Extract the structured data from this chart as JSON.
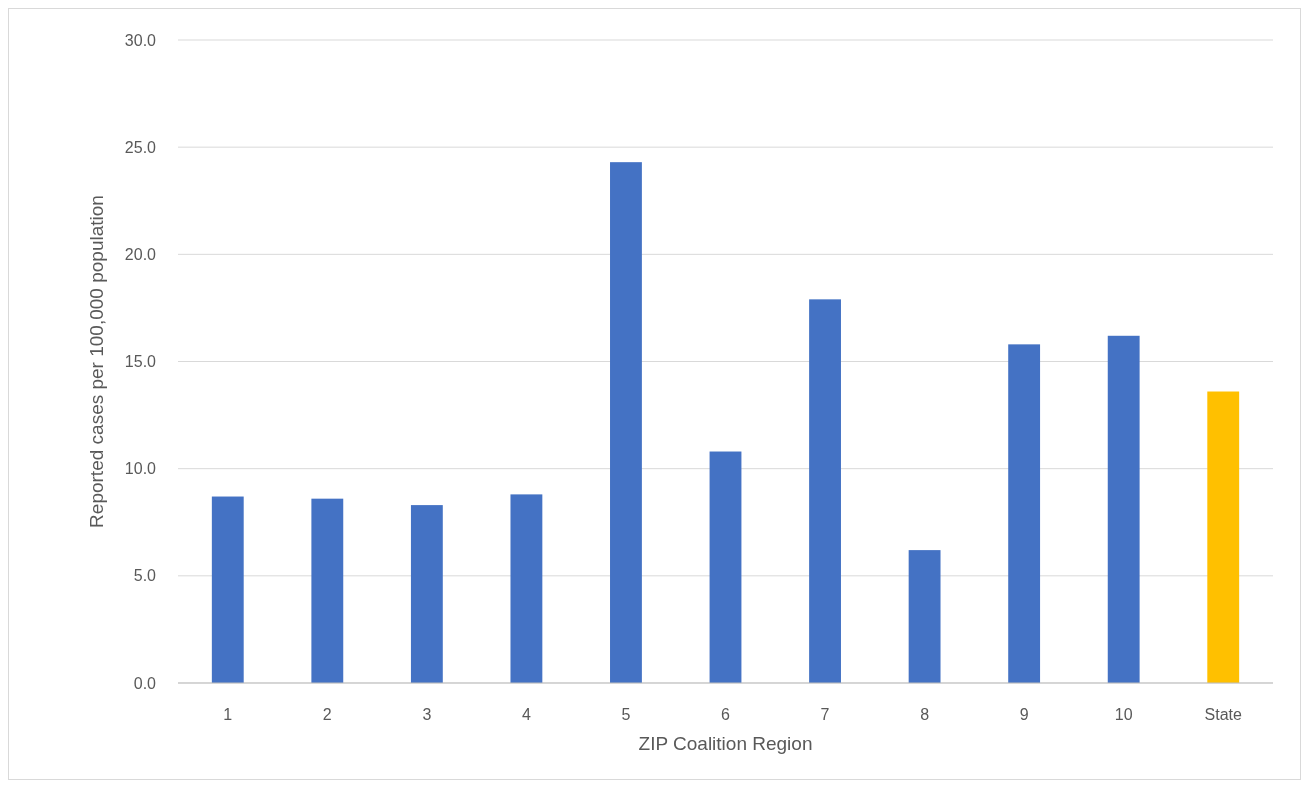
{
  "chart_data": {
    "type": "bar",
    "xlabel": "ZIP Coalition Region",
    "ylabel": "Reported cases per 100,000 population",
    "categories": [
      "1",
      "2",
      "3",
      "4",
      "5",
      "6",
      "7",
      "8",
      "9",
      "10",
      "State"
    ],
    "values": [
      8.7,
      8.6,
      8.3,
      8.8,
      24.3,
      10.8,
      17.9,
      6.2,
      15.8,
      16.2,
      13.6
    ],
    "colors": [
      "#4472c4",
      "#4472c4",
      "#4472c4",
      "#4472c4",
      "#4472c4",
      "#4472c4",
      "#4472c4",
      "#4472c4",
      "#4472c4",
      "#4472c4",
      "#ffc000"
    ],
    "ylim": [
      0,
      30
    ],
    "yticks": [
      {
        "value": 0,
        "label": "0.0"
      },
      {
        "value": 5,
        "label": "5.0"
      },
      {
        "value": 10,
        "label": "10.0"
      },
      {
        "value": 15,
        "label": "15.0"
      },
      {
        "value": 20,
        "label": "20.0"
      },
      {
        "value": 25,
        "label": "25.0"
      },
      {
        "value": 30,
        "label": "30.0"
      }
    ],
    "grid": "y"
  }
}
